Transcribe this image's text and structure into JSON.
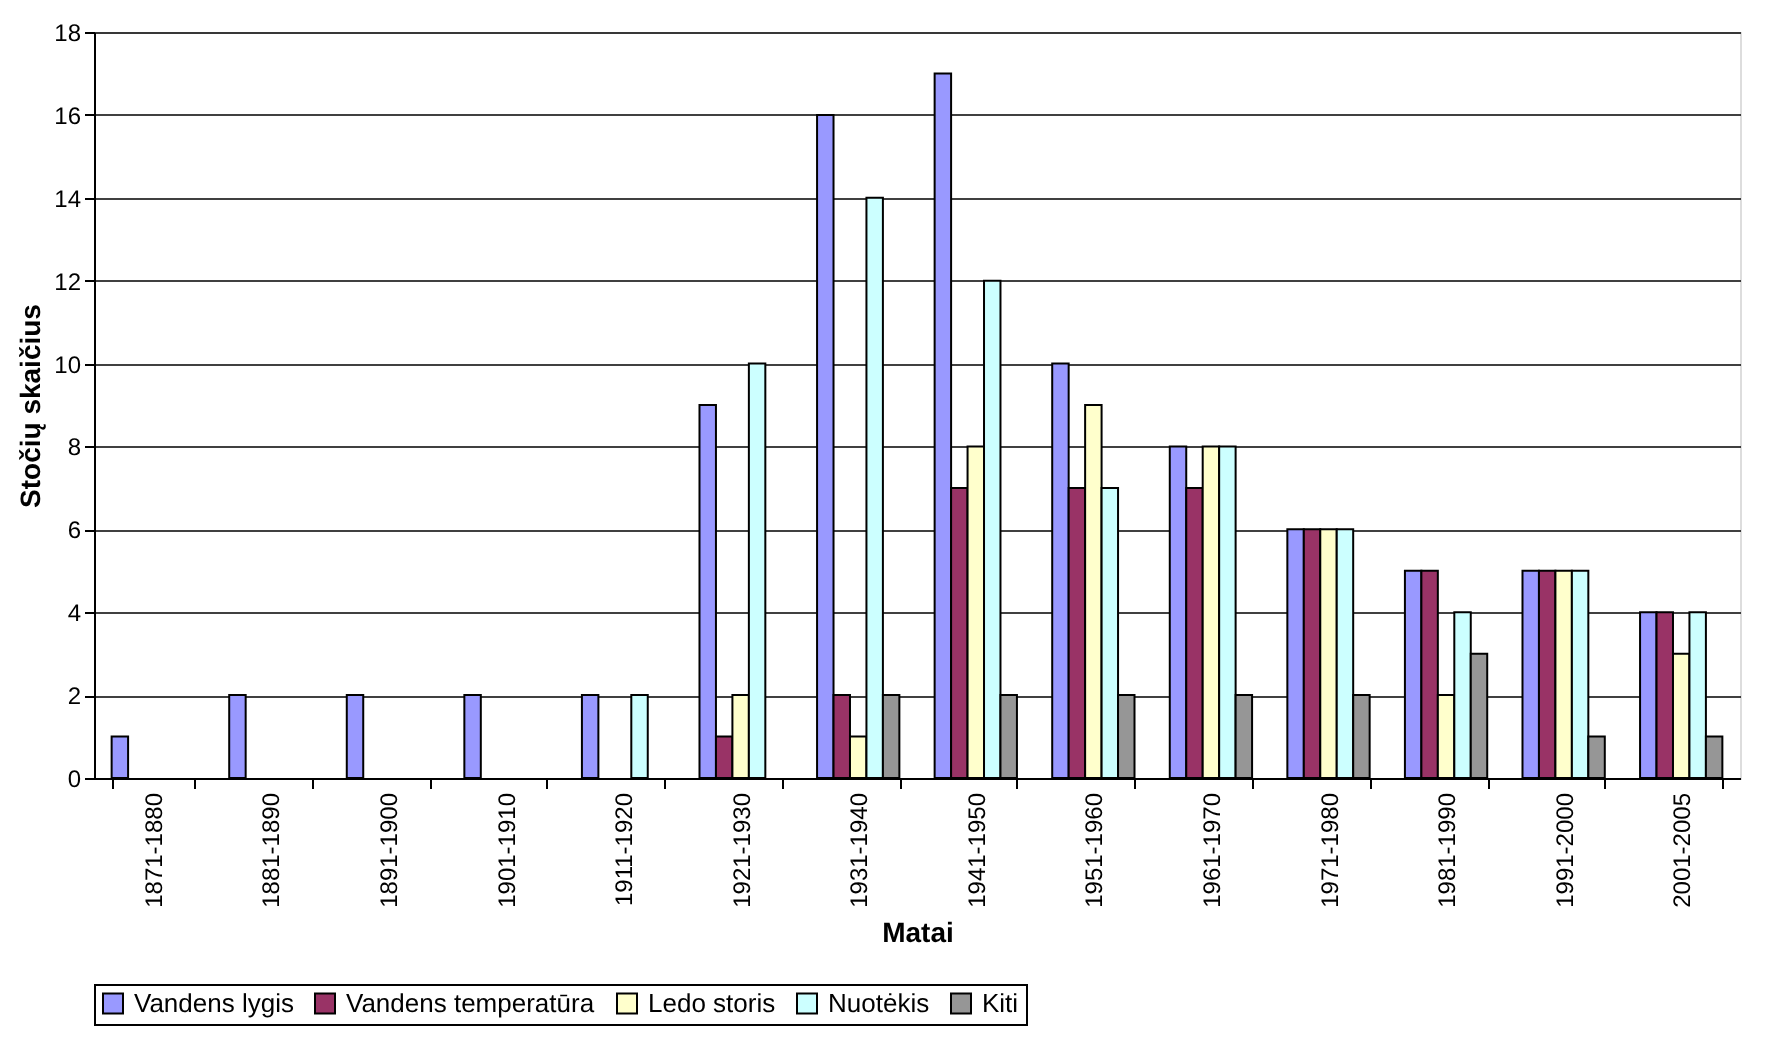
{
  "chart_data": {
    "type": "bar",
    "xlabel": "Matai",
    "ylabel": "Stočių skaičius",
    "categories": [
      "1871-1880",
      "1881-1890",
      "1891-1900",
      "1901-1910",
      "1911-1920",
      "1921-1930",
      "1931-1940",
      "1941-1950",
      "1951-1960",
      "1961-1970",
      "1971-1980",
      "1981-1990",
      "1991-2000",
      "2001-2005"
    ],
    "series": [
      {
        "name": "Vandens lygis",
        "color": "#9999ff",
        "values": [
          1,
          2,
          2,
          2,
          2,
          9,
          16,
          17,
          10,
          8,
          6,
          5,
          5,
          4
        ]
      },
      {
        "name": "Vandens temperatūra",
        "color": "#993366",
        "values": [
          null,
          null,
          null,
          null,
          null,
          1,
          2,
          7,
          7,
          7,
          6,
          5,
          5,
          4
        ]
      },
      {
        "name": "Ledo storis",
        "color": "#ffffcc",
        "values": [
          null,
          null,
          null,
          null,
          null,
          2,
          1,
          8,
          9,
          8,
          6,
          2,
          5,
          3
        ]
      },
      {
        "name": "Nuotėkis",
        "color": "#ccffff",
        "values": [
          null,
          null,
          null,
          null,
          2,
          10,
          14,
          12,
          7,
          8,
          6,
          4,
          5,
          4
        ]
      },
      {
        "name": "Kiti",
        "color": "#969696",
        "values": [
          null,
          null,
          null,
          null,
          null,
          null,
          2,
          2,
          2,
          2,
          2,
          3,
          1,
          1
        ]
      }
    ],
    "ylim": [
      0,
      18
    ],
    "yticks": [
      0,
      2,
      4,
      6,
      8,
      10,
      12,
      14,
      16,
      18
    ],
    "grid": "y",
    "legend": "bottom"
  }
}
